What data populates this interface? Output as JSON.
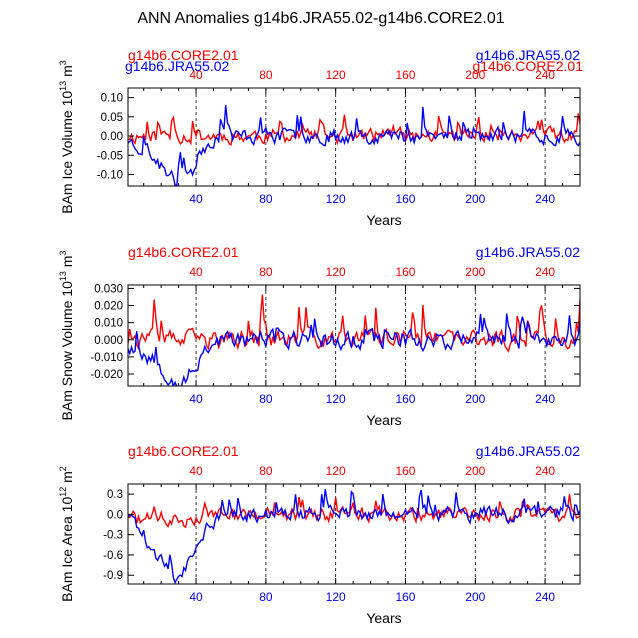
{
  "title": "ANN Anomalies g14b6.JRA55.02-g14b6.CORE2.01",
  "legend": {
    "red_label": "g14b6.CORE2.01",
    "blue_label": "g14b6.JRA55.02"
  },
  "colors": {
    "red": "#ff0000",
    "blue": "#0000ff",
    "axis": "#000000"
  },
  "chart_data": [
    {
      "type": "line",
      "title": "",
      "ylabel": "BAm Ice Volume 10",
      "ylabel_exp": "13",
      "ylabel_unit": " m",
      "ylabel_unit_exp": "3",
      "xlabel": "Years",
      "xlim": [
        1,
        260
      ],
      "ylim": [
        -0.13,
        0.125
      ],
      "yticks": [
        -0.1,
        -0.05,
        0.0,
        0.05,
        0.1
      ],
      "ytick_labels": [
        "-0.10",
        "-0.05",
        "0.00",
        "0.05",
        "0.10"
      ],
      "xticks": [
        40,
        80,
        120,
        160,
        200,
        240
      ],
      "xtick_labels": [
        "40",
        "80",
        "120",
        "160",
        "200",
        "240"
      ],
      "legend_top_left": "g14b6.CORE2.01",
      "legend_top_right": "g14b6.JRA55.02",
      "series": [
        {
          "name": "g14b6.CORE2.01",
          "color": "red",
          "seed": 11,
          "amplitude": 0.022,
          "spike_amp": 0.05,
          "drift": []
        },
        {
          "name": "g14b6.JRA55.02",
          "color": "blue",
          "seed": 23,
          "amplitude": 0.022,
          "spike_amp": 0.07,
          "drift": [
            [
              1,
              -0.01
            ],
            [
              12,
              -0.04
            ],
            [
              22,
              -0.09
            ],
            [
              30,
              -0.125
            ],
            [
              38,
              -0.09
            ],
            [
              44,
              -0.03
            ],
            [
              52,
              0.0
            ]
          ]
        }
      ]
    },
    {
      "type": "line",
      "title": "",
      "ylabel": "BAm Snow Volume 10",
      "ylabel_exp": "13",
      "ylabel_unit": " m",
      "ylabel_unit_exp": "3",
      "xlabel": "Years",
      "xlim": [
        1,
        260
      ],
      "ylim": [
        -0.027,
        0.032
      ],
      "yticks": [
        -0.02,
        -0.01,
        0.0,
        0.01,
        0.02,
        0.03
      ],
      "ytick_labels": [
        "-0.020",
        "-0.010",
        "0.000",
        "0.010",
        "0.020",
        "0.030"
      ],
      "xticks": [
        40,
        80,
        120,
        160,
        200,
        240
      ],
      "xtick_labels": [
        "40",
        "80",
        "120",
        "160",
        "200",
        "240"
      ],
      "legend_top_left": "g14b6.CORE2.01",
      "legend_top_right": "g14b6.JRA55.02",
      "series": [
        {
          "name": "g14b6.CORE2.01",
          "color": "red",
          "seed": 37,
          "amplitude": 0.006,
          "spike_amp": 0.02,
          "drift": []
        },
        {
          "name": "g14b6.JRA55.02",
          "color": "blue",
          "seed": 53,
          "amplitude": 0.006,
          "spike_amp": 0.012,
          "drift": [
            [
              1,
              -0.003
            ],
            [
              14,
              -0.01
            ],
            [
              24,
              -0.02
            ],
            [
              31,
              -0.026
            ],
            [
              38,
              -0.02
            ],
            [
              44,
              -0.006
            ],
            [
              52,
              0.0
            ]
          ]
        }
      ]
    },
    {
      "type": "line",
      "title": "",
      "ylabel": "BAm Ice Area 10",
      "ylabel_exp": "12",
      "ylabel_unit": " m",
      "ylabel_unit_exp": "2",
      "xlabel": "Years",
      "xlim": [
        1,
        260
      ],
      "ylim": [
        -1.03,
        0.45
      ],
      "yticks": [
        -0.9,
        -0.6,
        -0.3,
        0.0,
        0.3
      ],
      "ytick_labels": [
        "-0.9",
        "-0.6",
        "-0.3",
        "0.0",
        "0.3"
      ],
      "xticks": [
        40,
        80,
        120,
        160,
        200,
        240
      ],
      "xtick_labels": [
        "40",
        "80",
        "120",
        "160",
        "200",
        "240"
      ],
      "legend_top_left": "g14b6.CORE2.01",
      "legend_top_right": "g14b6.JRA55.02",
      "series": [
        {
          "name": "g14b6.CORE2.01",
          "color": "red",
          "seed": 71,
          "amplitude": 0.12,
          "spike_amp": 0.25,
          "drift": [
            [
              1,
              0.0
            ],
            [
              8,
              -0.1
            ],
            [
              20,
              -0.05
            ],
            [
              30,
              -0.1
            ],
            [
              45,
              0.0
            ]
          ]
        },
        {
          "name": "g14b6.JRA55.02",
          "color": "blue",
          "seed": 89,
          "amplitude": 0.13,
          "spike_amp": 0.3,
          "drift": [
            [
              1,
              0.0
            ],
            [
              10,
              -0.3
            ],
            [
              20,
              -0.7
            ],
            [
              30,
              -1.0
            ],
            [
              38,
              -0.6
            ],
            [
              46,
              -0.2
            ],
            [
              56,
              0.0
            ]
          ]
        }
      ]
    }
  ]
}
